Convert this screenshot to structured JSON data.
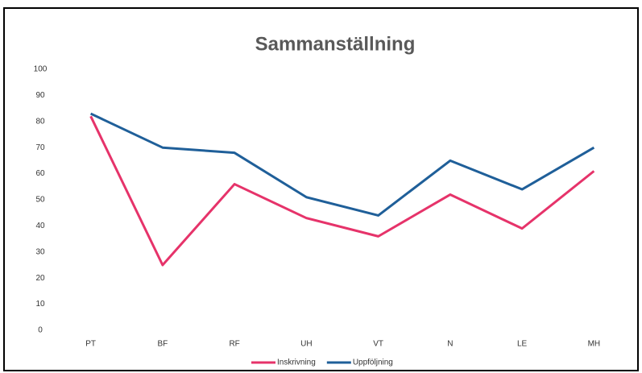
{
  "chart_data": {
    "type": "line",
    "title": "Sammanställning",
    "categories": [
      "PT",
      "BF",
      "RF",
      "UH",
      "VT",
      "N",
      "LE",
      "MH"
    ],
    "series": [
      {
        "name": "Inskrivning",
        "color": "#e6336a",
        "values": [
          82,
          25,
          56,
          43,
          36,
          52,
          39,
          61
        ]
      },
      {
        "name": "Uppföljning",
        "color": "#1f5f99",
        "values": [
          83,
          70,
          68,
          51,
          44,
          65,
          54,
          70
        ]
      }
    ],
    "ylim": [
      0,
      100
    ],
    "yticks": [
      0,
      10,
      20,
      30,
      40,
      50,
      60,
      70,
      80,
      90,
      100
    ],
    "grid": false,
    "legend": "bottom"
  }
}
